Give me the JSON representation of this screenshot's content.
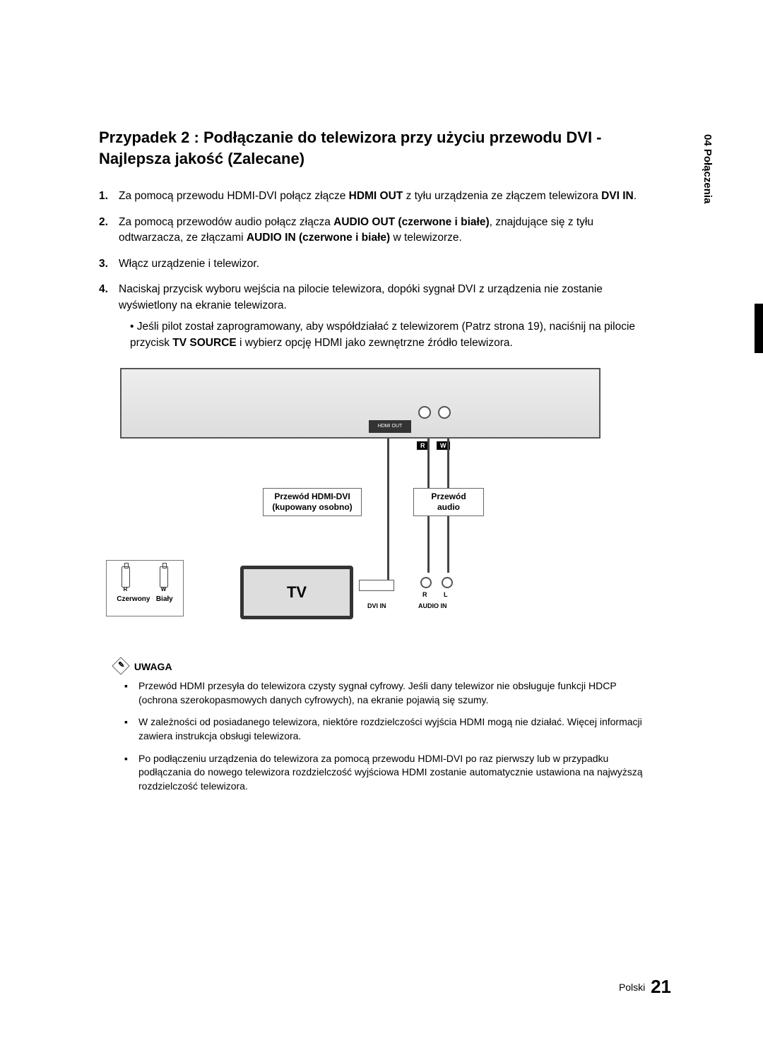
{
  "side_tab": "04  Połączenia",
  "title": "Przypadek 2 : Podłączanie do telewizora przy użyciu przewodu DVI - Najlepsza jakość (Zalecane)",
  "steps": {
    "s1_a": "Za pomocą przewodu HDMI-DVI połącz złącze ",
    "s1_b": "HDMI OUT",
    "s1_c": " z tyłu urządzenia ze złączem telewizora ",
    "s1_d": "DVI IN",
    "s1_e": ".",
    "s2_a": "Za pomocą przewodów audio połącz złącza ",
    "s2_b": "AUDIO OUT (czerwone i białe)",
    "s2_c": ", znajdujące się z tyłu odtwarzacza, ze złączami ",
    "s2_d": "AUDIO IN (czerwone i białe)",
    "s2_e": " w telewizorze.",
    "s3": "Włącz urządzenie i telewizor.",
    "s4": "Naciskaj przycisk wyboru wejścia na pilocie telewizora, dopóki sygnał DVI z urządzenia nie zostanie wyświetlony na ekranie telewizora.",
    "s4_sub_a": "Jeśli pilot został zaprogramowany, aby współdziałać z telewizorem (Patrz strona 19), naciśnij na pilocie przycisk ",
    "s4_sub_b": "TV SOURCE",
    "s4_sub_c": " i wybierz opcję HDMI jako zewnętrzne źródło telewizora."
  },
  "diagram": {
    "hdmi_label_l1": "Przewód HDMI-DVI",
    "hdmi_label_l2": "(kupowany osobno)",
    "audio_label": "Przewód audio",
    "tv_label": "TV",
    "dvi_in": "DVI IN",
    "audio_in": "AUDIO IN",
    "hdmi_out": "HDMI OUT",
    "r": "R",
    "w": "W",
    "r_circ": "R",
    "l_circ": "L",
    "legend_red": "Czerwony",
    "legend_white": "Biały",
    "plug_r": "R",
    "plug_w": "W"
  },
  "note_heading": "UWAGA",
  "notes": {
    "n1": "Przewód HDMI przesyła do telewizora czysty sygnał cyfrowy. Jeśli dany telewizor nie obsługuje funkcji HDCP (ochrona szerokopasmowych danych cyfrowych), na ekranie pojawią się szumy.",
    "n2": "W zależności od posiadanego telewizora, niektóre rozdzielczości wyjścia HDMI mogą nie działać. Więcej informacji zawiera instrukcja obsługi telewizora.",
    "n3": "Po podłączeniu urządzenia do telewizora za pomocą przewodu HDMI-DVI po raz pierwszy lub w przypadku podłączania do nowego telewizora rozdzielczość wyjściowa HDMI zostanie automatycznie ustawiona na najwyższą rozdzielczość telewizora."
  },
  "footer_lang": "Polski",
  "footer_page": "21"
}
